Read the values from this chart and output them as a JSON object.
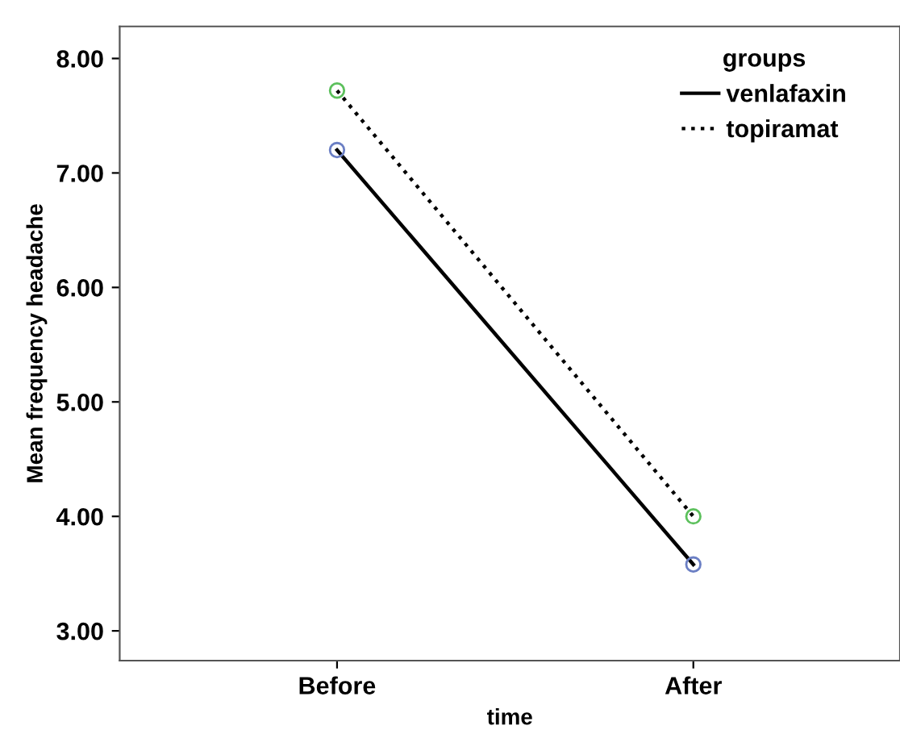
{
  "chart_data": {
    "type": "line",
    "xlabel": "time",
    "ylabel": "Mean frequency headache",
    "legend_title": "groups",
    "categories": [
      "Before",
      "After"
    ],
    "series": [
      {
        "name": "venlafaxin",
        "color": "#000000",
        "colors": [
          "#6b7fc4",
          "#6b7fc4"
        ],
        "line_style": "solid",
        "values": [
          7.2,
          3.58
        ]
      },
      {
        "name": "topiramat",
        "color": "#000000",
        "colors": [
          "#5cc05c",
          "#5cc05c"
        ],
        "line_style": "dotted",
        "values": [
          7.72,
          4.0
        ]
      }
    ],
    "ylim": [
      2.74,
      8.28
    ],
    "yticks": [
      {
        "value": 3,
        "label": "3.00"
      },
      {
        "value": 4,
        "label": "4.00"
      },
      {
        "value": 5,
        "label": "5.00"
      },
      {
        "value": 6,
        "label": "6.00"
      },
      {
        "value": 7,
        "label": "7.00"
      },
      {
        "value": 8,
        "label": "8.00"
      }
    ],
    "marker": "circle",
    "legend": "top right",
    "grid": false
  }
}
